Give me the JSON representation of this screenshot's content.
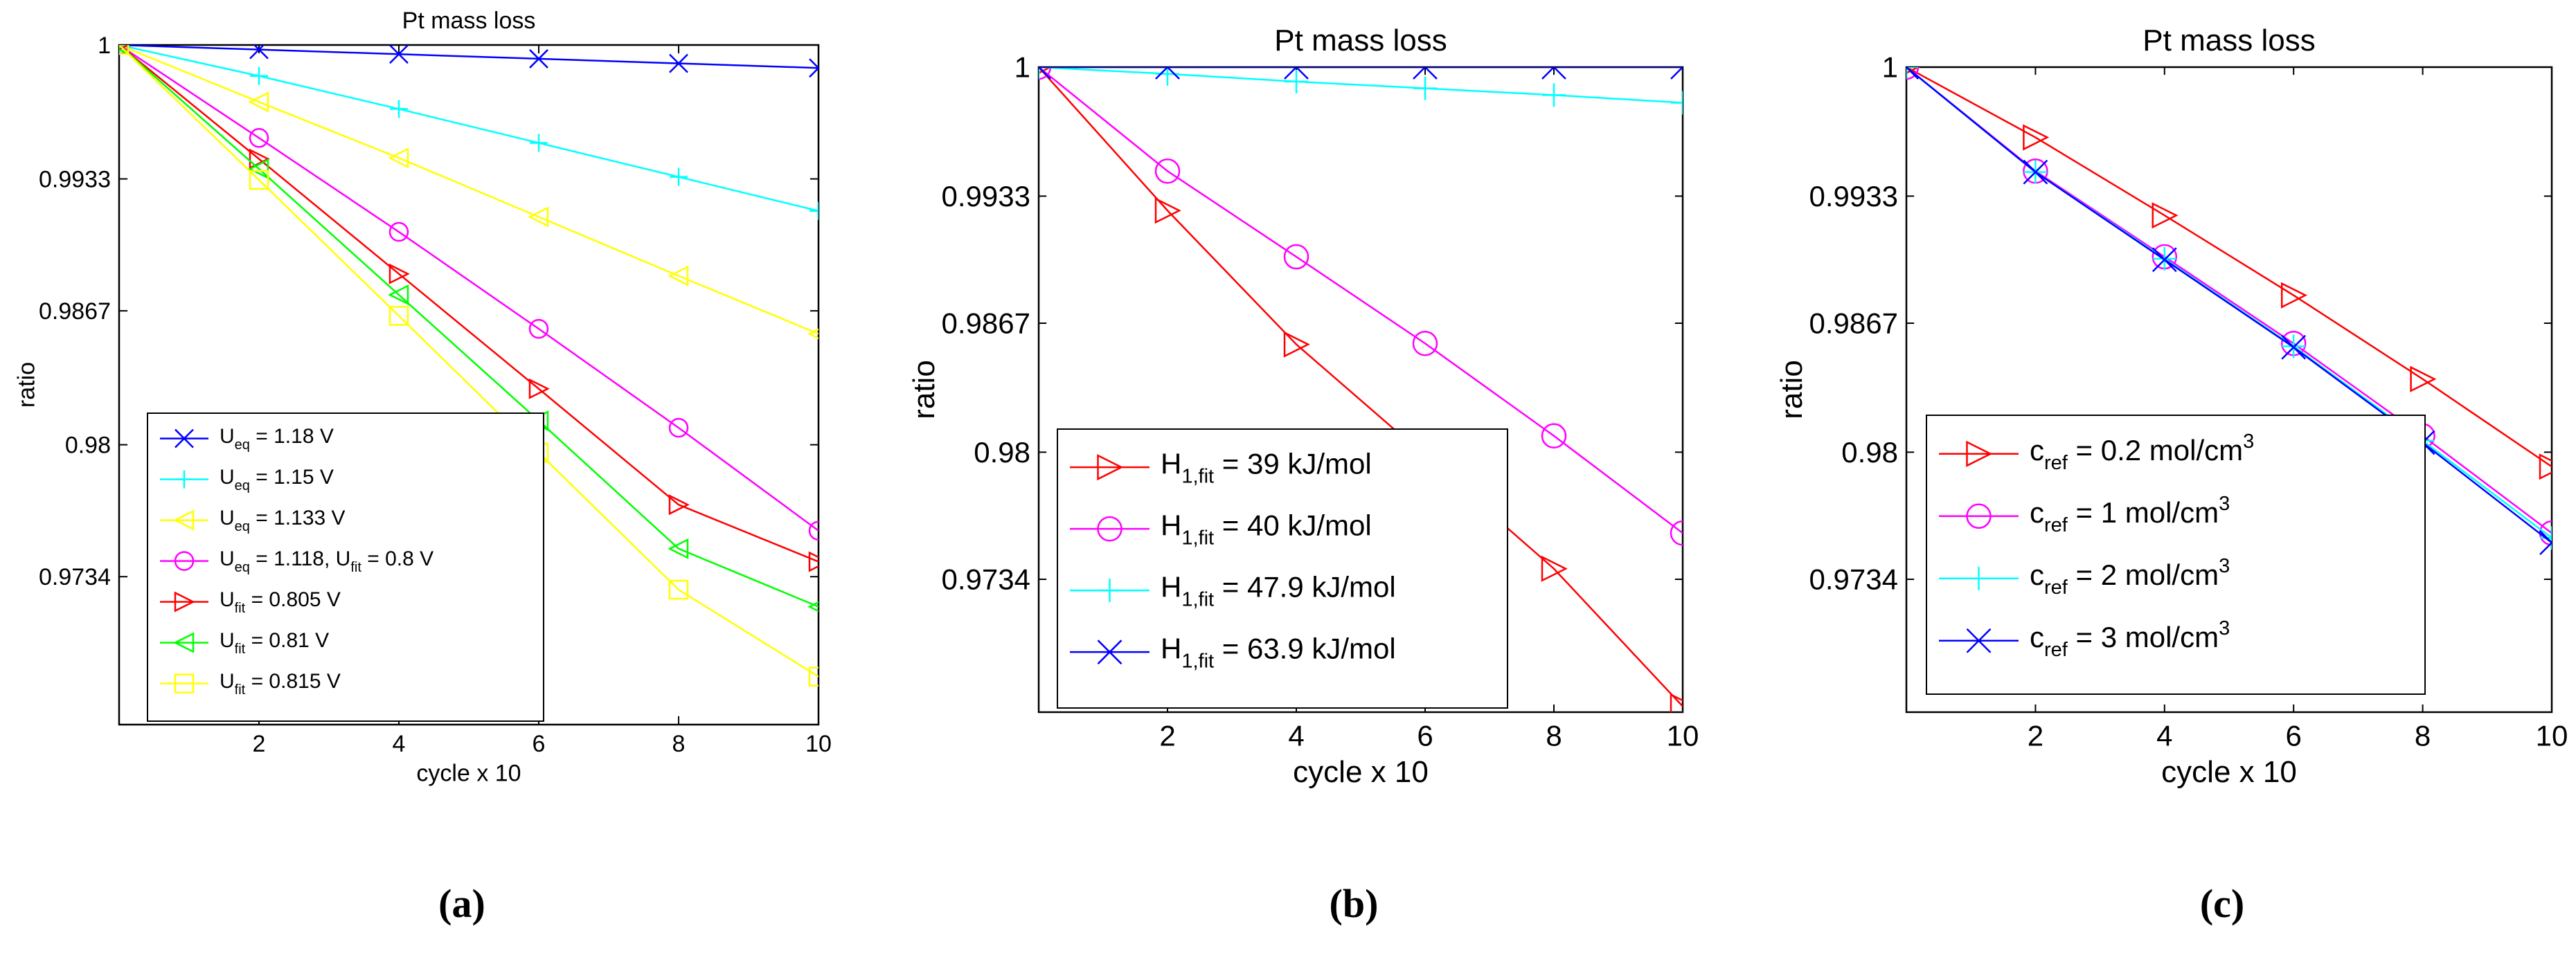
{
  "chart_data": [
    {
      "type": "line",
      "title": "Pt mass loss",
      "xlabel": "cycle x 10",
      "ylabel": "ratio",
      "panel_label": "a",
      "xlim": [
        0,
        10
      ],
      "ylim": [
        0.966,
        1.0
      ],
      "x_ticks": [
        2,
        4,
        6,
        8,
        10
      ],
      "y_ticks": [
        0.9734,
        0.98,
        0.9867,
        0.9933,
        1
      ],
      "y_tick_labels": [
        "0.9734",
        "0.98",
        "0.9867",
        "0.9933",
        "1"
      ],
      "grid": false,
      "legend_position": "bottom-left",
      "x": [
        0,
        2,
        4,
        6,
        8,
        10
      ],
      "series": [
        {
          "name": "U_eq = 1.18 V",
          "label_parts": [
            [
              "U",
              "eq",
              " = 1.18 V"
            ]
          ],
          "color": "#0000ff",
          "marker": "x",
          "values": [
            1.0,
            0.99977,
            0.99954,
            0.99931,
            0.99908,
            0.99885
          ]
        },
        {
          "name": "U_eq = 1.15 V",
          "label_parts": [
            [
              "U",
              "eq",
              " = 1.15 V"
            ]
          ],
          "color": "#00ffff",
          "marker": "plus",
          "values": [
            1.0,
            0.99845,
            0.9968,
            0.9951,
            0.9934,
            0.9917
          ]
        },
        {
          "name": "U_eq = 1.133 V",
          "label_parts": [
            [
              "U",
              "eq",
              " = 1.133 V"
            ]
          ],
          "color": "#ffff00",
          "marker": "triangle-left",
          "values": [
            1.0,
            0.99715,
            0.99435,
            0.9914,
            0.98845,
            0.98555
          ]
        },
        {
          "name": "U_eq = 1.118, U_fit = 0.8 V",
          "label_parts": [
            [
              "U",
              "eq",
              " = 1.118, "
            ],
            [
              "U",
              "fit",
              " = 0.8 V"
            ]
          ],
          "color": "#ff00ff",
          "marker": "circle",
          "values": [
            1.0,
            0.99535,
            0.99065,
            0.9858,
            0.98085,
            0.9757
          ]
        },
        {
          "name": "U_fit = 0.805 V",
          "label_parts": [
            [
              "U",
              "fit",
              " = 0.805 V"
            ]
          ],
          "color": "#ff0000",
          "marker": "triangle-right",
          "values": [
            1.0,
            0.9943,
            0.98855,
            0.9828,
            0.977,
            0.97415
          ]
        },
        {
          "name": "U_fit = 0.81 V",
          "label_parts": [
            [
              "U",
              "fit",
              " = 0.81 V"
            ]
          ],
          "color": "#00ff00",
          "marker": "triangle-left",
          "values": [
            1.0,
            0.9938,
            0.9875,
            0.9812,
            0.9748,
            0.9719
          ]
        },
        {
          "name": "U_fit = 0.815 V",
          "label_parts": [
            [
              "U",
              "fit",
              " = 0.815 V"
            ]
          ],
          "color": "#ffff00",
          "marker": "square",
          "values": [
            1.0,
            0.99325,
            0.98645,
            0.9796,
            0.97275,
            0.9684
          ]
        }
      ]
    },
    {
      "type": "line",
      "title": "Pt mass loss",
      "xlabel": "cycle x 10",
      "ylabel": "ratio",
      "panel_label": "b",
      "xlim": [
        0,
        10
      ],
      "ylim": [
        0.9665,
        1.0
      ],
      "x_ticks": [
        2,
        4,
        6,
        8,
        10
      ],
      "y_ticks": [
        0.9734,
        0.98,
        0.9867,
        0.9933,
        1
      ],
      "y_tick_labels": [
        "0.9734",
        "0.98",
        "0.9867",
        "0.9933",
        "1"
      ],
      "grid": false,
      "legend_position": "bottom-left",
      "x": [
        0,
        2,
        4,
        6,
        8,
        10
      ],
      "series": [
        {
          "name": "H_1,fit = 39 kJ/mol",
          "label_parts": [
            [
              "H",
              "1,fit",
              " = 39 kJ/mol"
            ]
          ],
          "color": "#ff0000",
          "marker": "triangle-right",
          "values": [
            1.0,
            0.99255,
            0.9856,
            0.9798,
            0.97395,
            0.9668
          ]
        },
        {
          "name": "H_1,fit = 40 kJ/mol",
          "label_parts": [
            [
              "H",
              "1,fit",
              " = 40 kJ/mol"
            ]
          ],
          "color": "#ff00ff",
          "marker": "circle",
          "values": [
            1.0,
            0.9946,
            0.99015,
            0.98565,
            0.98085,
            0.9758
          ]
        },
        {
          "name": "H_1,fit = 47.9 kJ/mol",
          "label_parts": [
            [
              "H",
              "1,fit",
              " = 47.9 kJ/mol"
            ]
          ],
          "color": "#00ffff",
          "marker": "plus",
          "values": [
            1.0,
            0.99965,
            0.99925,
            0.9989,
            0.99855,
            0.99815
          ]
        },
        {
          "name": "H_1,fit = 63.9 kJ/mol",
          "label_parts": [
            [
              "H",
              "1,fit",
              " = 63.9 kJ/mol"
            ]
          ],
          "color": "#0000ff",
          "marker": "x",
          "values": [
            1.0,
            1.0,
            1.0,
            1.0,
            1.0,
            1.0
          ]
        }
      ]
    },
    {
      "type": "line",
      "title": "Pt mass loss",
      "xlabel": "cycle x 10",
      "ylabel": "ratio",
      "panel_label": "c",
      "xlim": [
        0,
        10
      ],
      "ylim": [
        0.9665,
        1.0
      ],
      "x_ticks": [
        2,
        4,
        6,
        8,
        10
      ],
      "y_ticks": [
        0.9734,
        0.98,
        0.9867,
        0.9933,
        1
      ],
      "y_tick_labels": [
        "0.9734",
        "0.98",
        "0.9867",
        "0.9933",
        "1"
      ],
      "grid": false,
      "legend_position": "bottom-left",
      "x": [
        0,
        2,
        4,
        6,
        8,
        10
      ],
      "series": [
        {
          "name": "c_ref = 0.2 mol/cm^3",
          "label_parts": [
            [
              "c",
              "ref",
              " = 0.2 mol/cm",
              "3"
            ]
          ],
          "color": "#ff0000",
          "marker": "triangle-right",
          "values": [
            1.0,
            0.99635,
            0.9923,
            0.98815,
            0.9838,
            0.97925
          ]
        },
        {
          "name": "c_ref = 1 mol/cm^3",
          "label_parts": [
            [
              "c",
              "ref",
              " = 1 mol/cm",
              "3"
            ]
          ],
          "color": "#ff00ff",
          "marker": "circle",
          "values": [
            1.0,
            0.9946,
            0.99015,
            0.98565,
            0.98085,
            0.9758
          ]
        },
        {
          "name": "c_ref = 2 mol/cm^3",
          "label_parts": [
            [
              "c",
              "ref",
              " = 2 mol/cm",
              "3"
            ]
          ],
          "color": "#00ffff",
          "marker": "plus",
          "values": [
            1.0,
            0.99455,
            0.99005,
            0.9855,
            0.9806,
            0.97555
          ]
        },
        {
          "name": "c_ref = 3 mol/cm^3",
          "label_parts": [
            [
              "c",
              "ref",
              " = 3 mol/cm",
              "3"
            ]
          ],
          "color": "#0000ff",
          "marker": "x",
          "values": [
            1.0,
            0.99455,
            0.99,
            0.98545,
            0.9805,
            0.9753
          ]
        }
      ]
    }
  ]
}
